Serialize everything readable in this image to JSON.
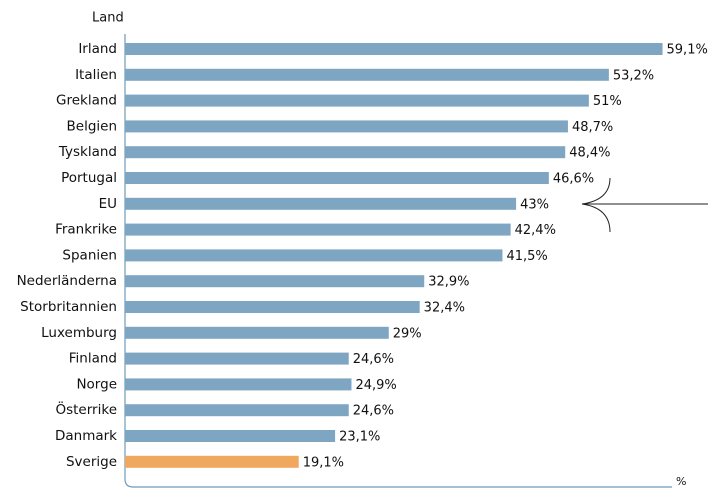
{
  "chart_data": {
    "type": "hbar",
    "y_label": "Land",
    "x_label": "%",
    "categories": [
      "Irland",
      "Italien",
      "Grekland",
      "Belgien",
      "Tyskland",
      "Portugal",
      "EU",
      "Frankrike",
      "Spanien",
      "Nederländerna",
      "Storbritannien",
      "Luxemburg",
      "Finland",
      "Norge",
      "Österrike",
      "Danmark",
      "Sverige"
    ],
    "values": [
      59.1,
      53.2,
      51,
      48.7,
      48.4,
      46.6,
      43,
      42.4,
      41.5,
      32.9,
      32.4,
      29,
      24.6,
      24.9,
      24.6,
      23.1,
      19.1
    ],
    "value_labels": [
      "59,1%",
      "53,2%",
      "51%",
      "48,7%",
      "48,4%",
      "46,6%",
      "43%",
      "42,4%",
      "41,5%",
      "32,9%",
      "32,4%",
      "29%",
      "24,6%",
      "24,9%",
      "24,6%",
      "23,1%",
      "19,1%"
    ],
    "colors": [
      "#7ea6c2",
      "#7ea6c2",
      "#7ea6c2",
      "#7ea6c2",
      "#7ea6c2",
      "#7ea6c2",
      "#7ea6c2",
      "#7ea6c2",
      "#7ea6c2",
      "#7ea6c2",
      "#7ea6c2",
      "#7ea6c2",
      "#7ea6c2",
      "#7ea6c2",
      "#7ea6c2",
      "#7ea6c2",
      "#f0a75e"
    ],
    "xlim": [
      0,
      63
    ]
  }
}
